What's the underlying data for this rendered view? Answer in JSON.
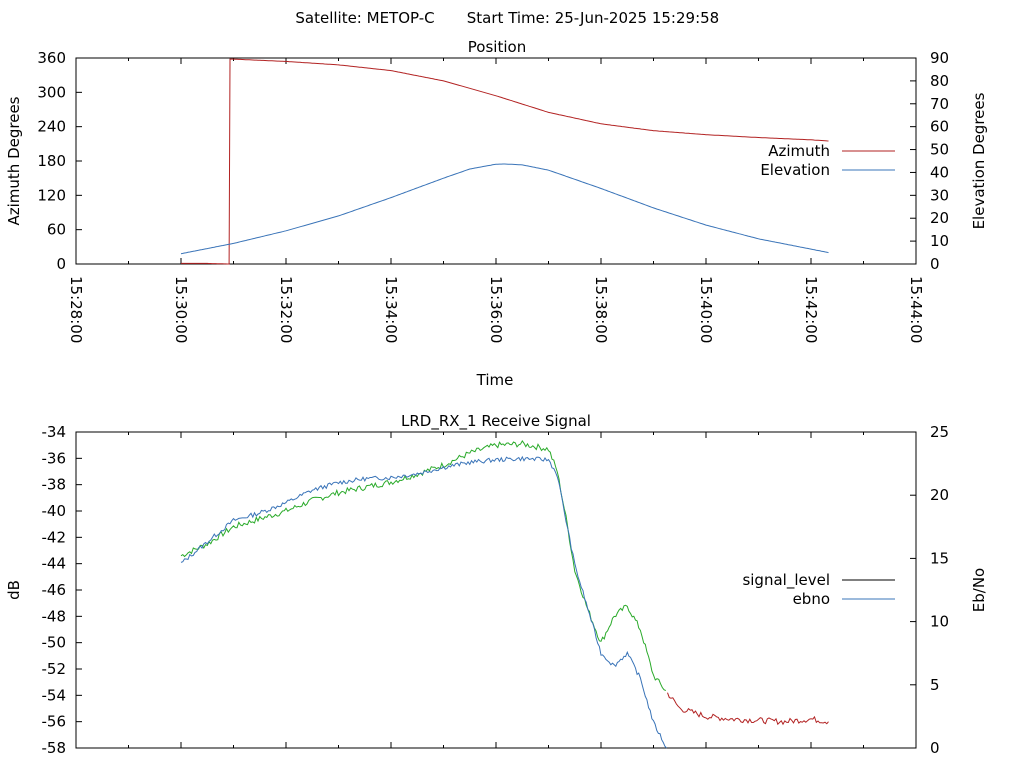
{
  "header": {
    "satellite_label": "Satellite: METOP-C",
    "start_time_label": "Start Time: 25-Jun-2025 15:29:58"
  },
  "colors": {
    "azimuth": "#b22222",
    "elevation": "#3a74b8",
    "signal_level": "#000000",
    "ebno": "#3a74b8",
    "signal_green": "#2aaa2a",
    "signal_red": "#b22222"
  },
  "chart_data": [
    {
      "type": "line",
      "title": "Position",
      "xlabel": "Time",
      "ylabel": "Azimuth Degrees",
      "y2label": "Elevation Degrees",
      "xlim": [
        "15:28:00",
        "15:44:00"
      ],
      "ylim": [
        0,
        360
      ],
      "y2lim": [
        0,
        90
      ],
      "x_tick_labels": [
        "15:28:00",
        "15:30:00",
        "15:32:00",
        "15:34:00",
        "15:36:00",
        "15:38:00",
        "15:40:00",
        "15:42:00",
        "15:44:00"
      ],
      "y_tick_labels": [
        "0",
        "60",
        "120",
        "180",
        "240",
        "300",
        "360"
      ],
      "y2_tick_labels": [
        "0",
        "10",
        "20",
        "30",
        "40",
        "50",
        "60",
        "70",
        "80",
        "90"
      ],
      "legend_position": "right",
      "series": [
        {
          "name": "Azimuth",
          "axis": "y",
          "x": [
            "15:30:00",
            "15:30:30",
            "15:30:55",
            "15:30:56",
            "15:31:00",
            "15:32:00",
            "15:33:00",
            "15:34:00",
            "15:35:00",
            "15:36:00",
            "15:37:00",
            "15:38:00",
            "15:39:00",
            "15:40:00",
            "15:41:00",
            "15:42:00",
            "15:42:20"
          ],
          "y": [
            1,
            1,
            0,
            358,
            358,
            354,
            348,
            338,
            320,
            294,
            265,
            245,
            233,
            226,
            221,
            217,
            215
          ]
        },
        {
          "name": "Elevation",
          "axis": "y2",
          "x": [
            "15:30:00",
            "15:31:00",
            "15:32:00",
            "15:33:00",
            "15:34:00",
            "15:35:00",
            "15:35:30",
            "15:36:00",
            "15:36:10",
            "15:36:30",
            "15:37:00",
            "15:38:00",
            "15:39:00",
            "15:40:00",
            "15:41:00",
            "15:42:00",
            "15:42:20"
          ],
          "y": [
            4.5,
            9,
            14.5,
            21,
            29,
            37.5,
            41.5,
            43.6,
            43.7,
            43.3,
            41,
            33,
            24.5,
            17,
            11,
            6.5,
            5
          ]
        }
      ]
    },
    {
      "type": "line",
      "title": "LRD_RX_1 Receive Signal",
      "ylabel": "dB",
      "y2label": "Eb/No",
      "xlim": [
        "15:28:00",
        "15:44:00"
      ],
      "ylim": [
        -58,
        -34
      ],
      "y2lim": [
        0,
        25
      ],
      "y_tick_labels": [
        "-58",
        "-56",
        "-54",
        "-52",
        "-50",
        "-48",
        "-46",
        "-44",
        "-42",
        "-40",
        "-38",
        "-36",
        "-34"
      ],
      "y2_tick_labels": [
        "0",
        "5",
        "10",
        "15",
        "20",
        "25"
      ],
      "legend_position": "right",
      "series": [
        {
          "name": "signal_level",
          "axis": "y",
          "x": [
            "15:30:00",
            "15:30:30",
            "15:31:00",
            "15:31:30",
            "15:32:00",
            "15:32:30",
            "15:33:00",
            "15:33:30",
            "15:34:00",
            "15:34:30",
            "15:35:00",
            "15:35:30",
            "15:36:00",
            "15:36:30",
            "15:37:00",
            "15:37:10",
            "15:37:20",
            "15:37:30",
            "15:37:45",
            "15:38:00",
            "15:38:15",
            "15:38:30",
            "15:38:45",
            "15:39:00",
            "15:39:30",
            "15:40:00",
            "15:40:30",
            "15:41:00",
            "15:41:30",
            "15:42:00",
            "15:42:20"
          ],
          "y": [
            -43.4,
            -42.5,
            -41.2,
            -40.6,
            -40.0,
            -39.2,
            -38.6,
            -38.2,
            -37.8,
            -37.2,
            -36.5,
            -35.6,
            -35.0,
            -34.9,
            -35.3,
            -37.0,
            -40.5,
            -44.5,
            -47.5,
            -50.0,
            -48.0,
            -47.2,
            -49.0,
            -52.5,
            -55.0,
            -55.6,
            -55.8,
            -55.9,
            -56.0,
            -55.8,
            -56.0
          ]
        },
        {
          "name": "ebno",
          "axis": "y2",
          "x": [
            "15:30:00",
            "15:30:30",
            "15:31:00",
            "15:31:30",
            "15:32:00",
            "15:32:30",
            "15:33:00",
            "15:33:30",
            "15:34:00",
            "15:34:30",
            "15:35:00",
            "15:35:30",
            "15:36:00",
            "15:36:30",
            "15:37:00",
            "15:37:10",
            "15:37:20",
            "15:37:30",
            "15:37:45",
            "15:38:00",
            "15:38:15",
            "15:38:30",
            "15:38:45",
            "15:39:00",
            "15:39:15"
          ],
          "y": [
            14.6,
            16.3,
            18.0,
            18.6,
            19.4,
            20.4,
            21.0,
            21.3,
            21.4,
            21.7,
            22.2,
            22.6,
            22.8,
            22.9,
            22.8,
            21.6,
            18.0,
            14.5,
            11.0,
            7.5,
            6.5,
            7.5,
            5.5,
            2.0,
            0
          ]
        }
      ]
    }
  ]
}
